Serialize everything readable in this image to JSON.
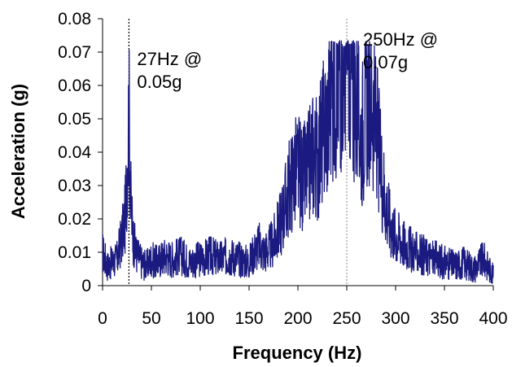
{
  "chart_data": {
    "type": "line",
    "title": "",
    "xlabel": "Frequency (Hz)",
    "ylabel": "Acceleration (g)",
    "xlim": [
      0,
      400
    ],
    "ylim": [
      0,
      0.08
    ],
    "x_ticks": [
      "0",
      "50",
      "100",
      "150",
      "200",
      "250",
      "300",
      "350",
      "400"
    ],
    "y_ticks": [
      "0",
      "0.01",
      "0.02",
      "0.03",
      "0.04",
      "0.05",
      "0.06",
      "0.07",
      "0.08"
    ],
    "grid": false,
    "legend": "none",
    "series": [
      {
        "color": "#1a1a80",
        "x": [
          0,
          5,
          10,
          15,
          20,
          23,
          25,
          26,
          27,
          28,
          29,
          31,
          34,
          40,
          45,
          50,
          55,
          60,
          65,
          70,
          80,
          90,
          100,
          110,
          120,
          130,
          140,
          150,
          155,
          160,
          165,
          170,
          175,
          180,
          185,
          190,
          195,
          200,
          205,
          210,
          215,
          220,
          225,
          230,
          235,
          240,
          245,
          248,
          250,
          252,
          255,
          260,
          265,
          270,
          275,
          280,
          285,
          290,
          295,
          300,
          305,
          310,
          320,
          330,
          340,
          350,
          360,
          370,
          380,
          390,
          400
        ],
        "y": [
          0.01,
          0.006,
          0.007,
          0.008,
          0.015,
          0.02,
          0.035,
          0.045,
          0.052,
          0.04,
          0.025,
          0.015,
          0.01,
          0.007,
          0.006,
          0.008,
          0.007,
          0.008,
          0.009,
          0.008,
          0.009,
          0.007,
          0.008,
          0.009,
          0.008,
          0.009,
          0.008,
          0.007,
          0.01,
          0.012,
          0.01,
          0.011,
          0.013,
          0.017,
          0.022,
          0.028,
          0.033,
          0.035,
          0.032,
          0.034,
          0.04,
          0.038,
          0.045,
          0.05,
          0.058,
          0.062,
          0.066,
          0.07,
          0.073,
          0.068,
          0.062,
          0.055,
          0.045,
          0.055,
          0.058,
          0.048,
          0.035,
          0.025,
          0.018,
          0.015,
          0.014,
          0.012,
          0.01,
          0.009,
          0.008,
          0.007,
          0.006,
          0.007,
          0.005,
          0.008,
          0.003
        ]
      }
    ],
    "annotations": [
      {
        "x": 27,
        "text": [
          "27Hz @",
          "0.05g"
        ],
        "line_color": "#000000"
      },
      {
        "x": 250,
        "text": [
          "250Hz @",
          "0.07g"
        ],
        "line_color": "#999999"
      }
    ]
  }
}
